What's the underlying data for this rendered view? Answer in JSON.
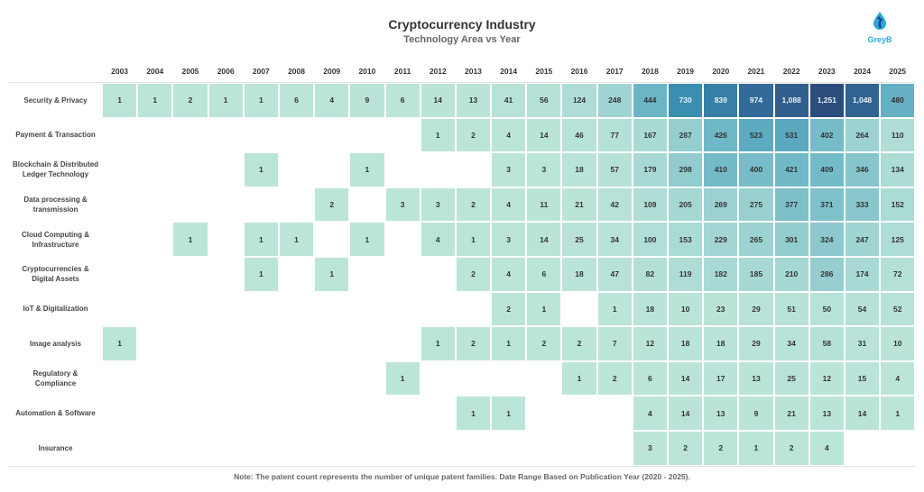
{
  "chart_data": {
    "type": "heatmap",
    "title": "Cryptocurrency Industry",
    "subtitle": "Technology Area vs Year",
    "x_categories": [
      "2003",
      "2004",
      "2005",
      "2006",
      "2007",
      "2008",
      "2009",
      "2010",
      "2011",
      "2012",
      "2013",
      "2014",
      "2015",
      "2016",
      "2017",
      "2018",
      "2019",
      "2020",
      "2021",
      "2022",
      "2023",
      "2024",
      "2025"
    ],
    "rows": [
      {
        "label": "Security & Privacy",
        "values": [
          1,
          1,
          2,
          1,
          1,
          6,
          4,
          9,
          6,
          14,
          13,
          41,
          56,
          124,
          248,
          444,
          730,
          839,
          974,
          1088,
          1251,
          1048,
          480
        ]
      },
      {
        "label": "Payment & Transaction",
        "values": [
          null,
          null,
          null,
          null,
          null,
          null,
          null,
          null,
          null,
          1,
          2,
          4,
          14,
          46,
          77,
          167,
          287,
          426,
          523,
          531,
          402,
          264,
          110
        ]
      },
      {
        "label": "Blockchain & Distributed Ledger Technology",
        "values": [
          null,
          null,
          null,
          null,
          1,
          null,
          null,
          1,
          null,
          null,
          null,
          3,
          3,
          18,
          57,
          179,
          298,
          410,
          400,
          421,
          409,
          346,
          134
        ]
      },
      {
        "label": "Data processing & transmission",
        "values": [
          null,
          null,
          null,
          null,
          null,
          null,
          2,
          null,
          3,
          3,
          2,
          4,
          11,
          21,
          42,
          109,
          205,
          269,
          275,
          377,
          371,
          333,
          152
        ]
      },
      {
        "label": "Cloud Computing & Infrastructure",
        "values": [
          null,
          null,
          1,
          null,
          1,
          1,
          null,
          1,
          null,
          4,
          1,
          3,
          14,
          25,
          34,
          100,
          153,
          229,
          265,
          301,
          324,
          247,
          125
        ]
      },
      {
        "label": "Cryptocurrencies & Digital Assets",
        "values": [
          null,
          null,
          null,
          null,
          1,
          null,
          1,
          null,
          null,
          null,
          2,
          4,
          6,
          18,
          47,
          82,
          119,
          182,
          185,
          210,
          286,
          174,
          72
        ]
      },
      {
        "label": "IoT & Digitalization",
        "values": [
          null,
          null,
          null,
          null,
          null,
          null,
          null,
          null,
          null,
          null,
          null,
          2,
          1,
          null,
          1,
          18,
          10,
          23,
          29,
          51,
          50,
          54,
          52
        ]
      },
      {
        "label": "Image analysis",
        "values": [
          1,
          null,
          null,
          null,
          null,
          null,
          null,
          null,
          null,
          1,
          2,
          1,
          2,
          2,
          7,
          12,
          18,
          18,
          29,
          34,
          58,
          31,
          10
        ]
      },
      {
        "label": "Regulatory & Compliance",
        "values": [
          null,
          null,
          null,
          null,
          null,
          null,
          null,
          null,
          1,
          null,
          null,
          null,
          null,
          1,
          2,
          6,
          14,
          17,
          13,
          25,
          12,
          15,
          4
        ]
      },
      {
        "label": "Automation & Software",
        "values": [
          null,
          null,
          null,
          null,
          null,
          null,
          null,
          null,
          null,
          null,
          1,
          1,
          null,
          null,
          null,
          4,
          14,
          13,
          9,
          21,
          13,
          14,
          1
        ]
      },
      {
        "label": "Insurance",
        "values": [
          null,
          null,
          null,
          null,
          null,
          null,
          null,
          null,
          null,
          null,
          null,
          null,
          null,
          null,
          null,
          3,
          2,
          2,
          1,
          2,
          4,
          null,
          null
        ]
      }
    ],
    "color_scale": {
      "min": 1,
      "max": 1251,
      "low": "#bce5d9",
      "high": "#2b4d7d"
    },
    "number_format": "thousands-comma"
  },
  "logo": {
    "text": "GreyB",
    "color": "#29a9d8"
  },
  "note": "Note: The patent count represents the number of unique patent families. Date Range Based on Publication Year (2020 - 2025)."
}
